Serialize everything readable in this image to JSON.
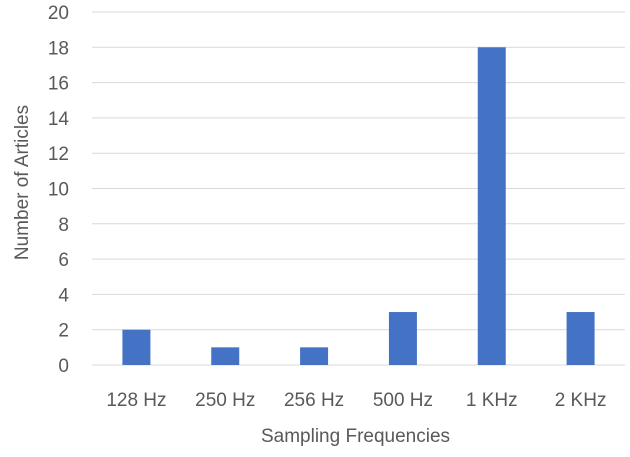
{
  "chart_data": {
    "type": "bar",
    "title": "",
    "xlabel": "Sampling Frequencies",
    "ylabel": "Number of Articles",
    "categories": [
      "128 Hz",
      "250 Hz",
      "256 Hz",
      "500 Hz",
      "1 KHz",
      "2 KHz"
    ],
    "values": [
      2,
      1,
      1,
      3,
      18,
      3
    ],
    "ylim": [
      0,
      20
    ],
    "yticks": [
      "0",
      "2",
      "4",
      "6",
      "8",
      "10",
      "12",
      "14",
      "16",
      "18",
      "20"
    ],
    "grid": true,
    "legend": "none",
    "bar_color": "#4472c4"
  }
}
